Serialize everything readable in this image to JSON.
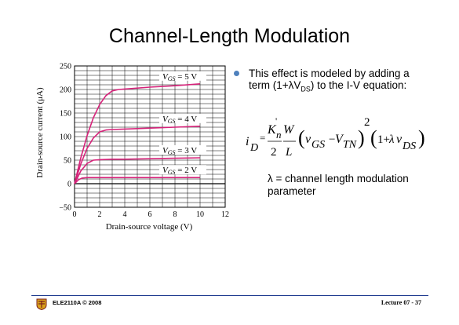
{
  "slide": {
    "title": "Channel-Length Modulation",
    "bullet": {
      "text_before": "This effect is modeled by adding a term (1+",
      "lambda": "λ",
      "v": "V",
      "sub": "DS",
      "text_after": ") to the I-V equation:"
    },
    "equation": {
      "i": "i",
      "D": "D",
      "K": "K",
      "prime": "'",
      "n": "n",
      "two": "2",
      "W": "W",
      "L": "L",
      "vGS": "v",
      "GS": "GS",
      "minus": "−",
      "VTN": "V",
      "TN": "TN",
      "square": "2",
      "one_plus": "1+",
      "lambda": "λ",
      "vDS": "v",
      "DS": "DS"
    },
    "lambda_def": {
      "symbol": "λ",
      "eq": " = ",
      "text": "channel length modulation parameter"
    },
    "footer": {
      "left": "ELE2110A © 2008",
      "right": "Lecture 07 - 37"
    }
  },
  "colors": {
    "curve": "#d6237a",
    "grid": "#000000",
    "bullet": "#4f81bd",
    "footer_line": "#1f3b8f"
  },
  "chart_data": {
    "type": "line",
    "xlabel": "Drain-source voltage (V)",
    "ylabel": "Drain-source current (μA)",
    "xlim": [
      0,
      12
    ],
    "ylim": [
      -50,
      250
    ],
    "xticks": [
      0,
      2,
      4,
      6,
      8,
      10,
      12
    ],
    "yticks": [
      -50,
      0,
      50,
      100,
      150,
      200,
      250
    ],
    "grid": true,
    "series": [
      {
        "name": "VGS = 5 V",
        "label_v": "V",
        "label_sub": "GS",
        "label_val": " = 5 V",
        "x": [
          0,
          0.5,
          1,
          1.5,
          2,
          2.5,
          3,
          3.5,
          4,
          6,
          8,
          10
        ],
        "y": [
          0,
          55,
          102,
          140,
          168,
          187,
          197,
          200,
          201,
          205,
          208,
          212
        ]
      },
      {
        "name": "VGS = 4 V",
        "label_v": "V",
        "label_sub": "GS",
        "label_val": " = 4 V",
        "x": [
          0,
          0.5,
          1,
          1.5,
          2,
          2.5,
          3,
          4,
          6,
          8,
          10
        ],
        "y": [
          0,
          42,
          75,
          97,
          110,
          114,
          115,
          116,
          118,
          120,
          122
        ]
      },
      {
        "name": "VGS = 3 V",
        "label_v": "V",
        "label_sub": "GS",
        "label_val": " = 3 V",
        "x": [
          0,
          0.5,
          1,
          1.5,
          2,
          3,
          4,
          6,
          8,
          10
        ],
        "y": [
          0,
          27,
          43,
          50,
          51,
          52,
          52,
          53,
          54,
          55
        ]
      },
      {
        "name": "VGS = 2 V",
        "label_v": "V",
        "label_sub": "GS",
        "label_val": " = 2 V",
        "x": [
          0,
          0.3,
          0.6,
          1,
          2,
          4,
          6,
          8,
          10
        ],
        "y": [
          0,
          8,
          12,
          13,
          13,
          13,
          13,
          13,
          13
        ]
      }
    ]
  }
}
